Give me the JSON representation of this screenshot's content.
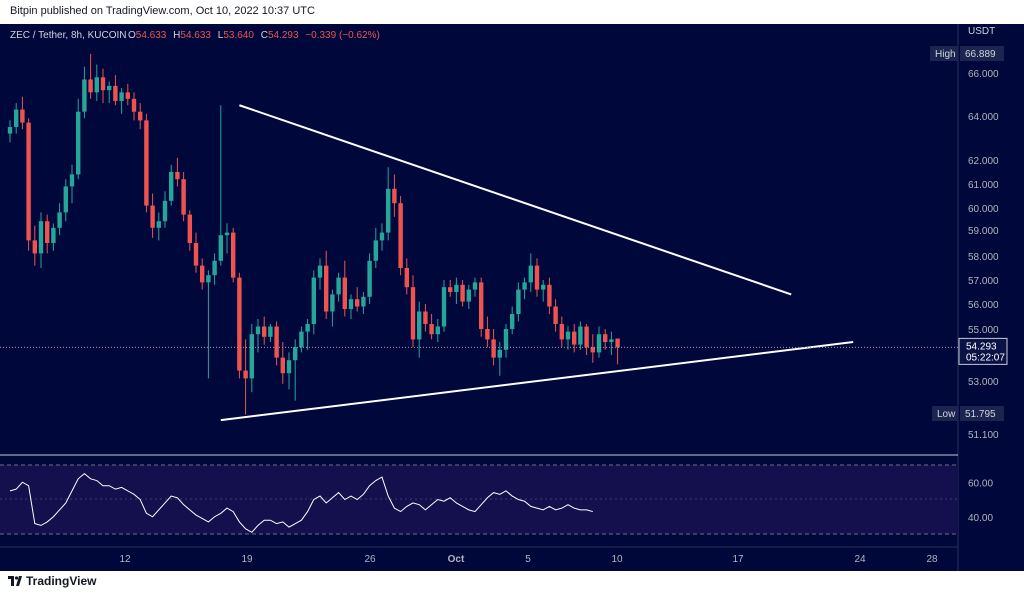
{
  "publisher_line": "Bitpin published on TradingView.com, Oct 10, 2022 10:37 UTC",
  "symbol_line": {
    "symbol": "ZEC / Tether, 8h, KUCOIN",
    "o_label": "O",
    "o_value": "54.633",
    "h_label": "H",
    "h_value": "54.633",
    "l_label": "L",
    "l_value": "53.640",
    "c_label": "C",
    "c_value": "54.293",
    "change": "−0.339 (−0.62%)"
  },
  "price_axis": {
    "currency": "USDT",
    "ticks": [
      "66.000",
      "64.000",
      "62.000",
      "61.000",
      "60.000",
      "59.000",
      "58.000",
      "57.000",
      "56.000",
      "55.000",
      "53.000",
      "52.000",
      "51.100"
    ],
    "high_label": "High",
    "high_value": "66.889",
    "low_label": "Low",
    "low_value": "51.795",
    "current_price": "54.293",
    "countdown": "05:22:07"
  },
  "rsi_axis": {
    "ticks": [
      "60.00",
      "40.00"
    ],
    "upper_band": 70,
    "lower_band": 30
  },
  "time_axis": {
    "ticks": [
      "12",
      "19",
      "26",
      "Oct",
      "5",
      "10",
      "17",
      "24",
      "28"
    ]
  },
  "footer": {
    "brand": "TradingView",
    "logo_icon": "tradingview-logo-icon"
  },
  "colors": {
    "background": "#00073a",
    "up": "#26a69a",
    "down": "#ef5350",
    "trendline": "#ffffff",
    "rsi_line": "#ffffff"
  },
  "chart_data": {
    "type": "candlestick",
    "symbol": "ZEC / Tether",
    "interval": "8h",
    "exchange": "KUCOIN",
    "ylim": [
      51.1,
      66.9
    ],
    "candles": [
      {
        "o": 63.2,
        "h": 63.8,
        "l": 62.8,
        "c": 63.5
      },
      {
        "o": 63.5,
        "h": 64.6,
        "l": 63.2,
        "c": 64.3
      },
      {
        "o": 64.3,
        "h": 64.9,
        "l": 63.4,
        "c": 63.7
      },
      {
        "o": 63.7,
        "h": 63.9,
        "l": 58.2,
        "c": 58.6
      },
      {
        "o": 58.6,
        "h": 59.2,
        "l": 57.6,
        "c": 58.1
      },
      {
        "o": 58.1,
        "h": 59.8,
        "l": 57.5,
        "c": 59.4
      },
      {
        "o": 59.4,
        "h": 59.7,
        "l": 58.1,
        "c": 58.5
      },
      {
        "o": 58.5,
        "h": 59.3,
        "l": 58.2,
        "c": 59.1
      },
      {
        "o": 59.1,
        "h": 60.2,
        "l": 58.8,
        "c": 59.8
      },
      {
        "o": 59.8,
        "h": 61.2,
        "l": 59.4,
        "c": 60.9
      },
      {
        "o": 60.9,
        "h": 61.8,
        "l": 60.2,
        "c": 61.4
      },
      {
        "o": 61.4,
        "h": 64.8,
        "l": 61.2,
        "c": 64.2
      },
      {
        "o": 64.2,
        "h": 66.3,
        "l": 63.9,
        "c": 65.7
      },
      {
        "o": 65.7,
        "h": 66.9,
        "l": 64.8,
        "c": 65.1
      },
      {
        "o": 65.1,
        "h": 66.4,
        "l": 64.7,
        "c": 65.8
      },
      {
        "o": 65.8,
        "h": 66.2,
        "l": 64.6,
        "c": 65.2
      },
      {
        "o": 65.2,
        "h": 65.6,
        "l": 64.6,
        "c": 65.4
      },
      {
        "o": 65.4,
        "h": 65.9,
        "l": 64.5,
        "c": 64.7
      },
      {
        "o": 64.7,
        "h": 65.3,
        "l": 64.1,
        "c": 65.1
      },
      {
        "o": 65.1,
        "h": 65.5,
        "l": 64.5,
        "c": 64.8
      },
      {
        "o": 64.8,
        "h": 65.1,
        "l": 63.8,
        "c": 64.2
      },
      {
        "o": 64.2,
        "h": 64.6,
        "l": 63.4,
        "c": 63.8
      },
      {
        "o": 63.8,
        "h": 64.1,
        "l": 59.8,
        "c": 60.1
      },
      {
        "o": 60.1,
        "h": 60.6,
        "l": 58.7,
        "c": 59.1
      },
      {
        "o": 59.1,
        "h": 59.8,
        "l": 58.6,
        "c": 59.4
      },
      {
        "o": 59.4,
        "h": 60.7,
        "l": 59.1,
        "c": 60.3
      },
      {
        "o": 60.3,
        "h": 61.8,
        "l": 60.1,
        "c": 61.5
      },
      {
        "o": 61.5,
        "h": 62.1,
        "l": 60.9,
        "c": 61.2
      },
      {
        "o": 61.2,
        "h": 61.5,
        "l": 59.4,
        "c": 59.7
      },
      {
        "o": 59.7,
        "h": 59.9,
        "l": 58.2,
        "c": 58.5
      },
      {
        "o": 58.5,
        "h": 58.9,
        "l": 57.3,
        "c": 57.6
      },
      {
        "o": 57.6,
        "h": 57.9,
        "l": 56.6,
        "c": 56.9
      },
      {
        "o": 56.9,
        "h": 57.4,
        "l": 53.1,
        "c": 57.2
      },
      {
        "o": 57.2,
        "h": 58.1,
        "l": 56.8,
        "c": 57.8
      },
      {
        "o": 57.8,
        "h": 64.5,
        "l": 57.6,
        "c": 58.8
      },
      {
        "o": 58.8,
        "h": 59.3,
        "l": 58.1,
        "c": 58.9
      },
      {
        "o": 58.9,
        "h": 59.1,
        "l": 56.9,
        "c": 57.1
      },
      {
        "o": 57.1,
        "h": 57.3,
        "l": 53.1,
        "c": 53.4
      },
      {
        "o": 53.4,
        "h": 54.6,
        "l": 51.8,
        "c": 53.1
      },
      {
        "o": 53.1,
        "h": 55.2,
        "l": 52.6,
        "c": 54.8
      },
      {
        "o": 54.8,
        "h": 55.4,
        "l": 54.1,
        "c": 55.1
      },
      {
        "o": 55.1,
        "h": 55.5,
        "l": 54.4,
        "c": 54.7
      },
      {
        "o": 54.7,
        "h": 55.2,
        "l": 54.5,
        "c": 55.1
      },
      {
        "o": 55.1,
        "h": 55.3,
        "l": 53.6,
        "c": 53.9
      },
      {
        "o": 53.9,
        "h": 54.5,
        "l": 52.9,
        "c": 53.3
      },
      {
        "o": 53.3,
        "h": 54.1,
        "l": 52.7,
        "c": 53.8
      },
      {
        "o": 53.8,
        "h": 54.6,
        "l": 52.3,
        "c": 54.3
      },
      {
        "o": 54.3,
        "h": 55.1,
        "l": 54.1,
        "c": 54.9
      },
      {
        "o": 54.9,
        "h": 55.4,
        "l": 54.2,
        "c": 55.2
      },
      {
        "o": 55.2,
        "h": 57.4,
        "l": 54.8,
        "c": 57.1
      },
      {
        "o": 57.1,
        "h": 57.9,
        "l": 56.6,
        "c": 57.6
      },
      {
        "o": 57.6,
        "h": 58.2,
        "l": 55.4,
        "c": 55.7
      },
      {
        "o": 55.7,
        "h": 56.6,
        "l": 55.1,
        "c": 56.4
      },
      {
        "o": 56.4,
        "h": 57.3,
        "l": 56.1,
        "c": 57.1
      },
      {
        "o": 57.1,
        "h": 57.8,
        "l": 55.5,
        "c": 55.8
      },
      {
        "o": 55.8,
        "h": 56.4,
        "l": 55.4,
        "c": 56.2
      },
      {
        "o": 56.2,
        "h": 56.7,
        "l": 55.7,
        "c": 55.9
      },
      {
        "o": 55.9,
        "h": 56.5,
        "l": 55.6,
        "c": 56.3
      },
      {
        "o": 56.3,
        "h": 58.1,
        "l": 56.0,
        "c": 57.8
      },
      {
        "o": 57.8,
        "h": 59.1,
        "l": 57.5,
        "c": 58.6
      },
      {
        "o": 58.6,
        "h": 59.3,
        "l": 58.2,
        "c": 58.9
      },
      {
        "o": 58.9,
        "h": 61.7,
        "l": 58.6,
        "c": 60.8
      },
      {
        "o": 60.8,
        "h": 61.4,
        "l": 59.6,
        "c": 60.2
      },
      {
        "o": 60.2,
        "h": 60.5,
        "l": 57.2,
        "c": 57.5
      },
      {
        "o": 57.5,
        "h": 57.9,
        "l": 56.4,
        "c": 56.7
      },
      {
        "o": 56.7,
        "h": 57.2,
        "l": 54.3,
        "c": 54.6
      },
      {
        "o": 54.6,
        "h": 56.1,
        "l": 53.9,
        "c": 55.7
      },
      {
        "o": 55.7,
        "h": 56.0,
        "l": 54.9,
        "c": 55.2
      },
      {
        "o": 55.2,
        "h": 55.6,
        "l": 54.6,
        "c": 54.8
      },
      {
        "o": 54.8,
        "h": 55.4,
        "l": 54.5,
        "c": 55.1
      },
      {
        "o": 55.1,
        "h": 57.0,
        "l": 54.9,
        "c": 56.7
      },
      {
        "o": 56.7,
        "h": 57.0,
        "l": 56.3,
        "c": 56.5
      },
      {
        "o": 56.5,
        "h": 57.1,
        "l": 56.0,
        "c": 56.8
      },
      {
        "o": 56.8,
        "h": 57.0,
        "l": 55.9,
        "c": 56.1
      },
      {
        "o": 56.1,
        "h": 56.8,
        "l": 55.8,
        "c": 56.6
      },
      {
        "o": 56.6,
        "h": 57.1,
        "l": 56.3,
        "c": 56.9
      },
      {
        "o": 56.9,
        "h": 57.1,
        "l": 54.7,
        "c": 55.0
      },
      {
        "o": 55.0,
        "h": 55.5,
        "l": 54.3,
        "c": 54.6
      },
      {
        "o": 54.6,
        "h": 55.0,
        "l": 53.6,
        "c": 53.9
      },
      {
        "o": 53.9,
        "h": 54.5,
        "l": 53.2,
        "c": 54.2
      },
      {
        "o": 54.2,
        "h": 55.2,
        "l": 53.9,
        "c": 55.0
      },
      {
        "o": 55.0,
        "h": 55.9,
        "l": 54.8,
        "c": 55.6
      },
      {
        "o": 55.6,
        "h": 56.9,
        "l": 55.3,
        "c": 56.6
      },
      {
        "o": 56.6,
        "h": 57.1,
        "l": 56.2,
        "c": 56.9
      },
      {
        "o": 56.9,
        "h": 58.1,
        "l": 56.5,
        "c": 57.6
      },
      {
        "o": 57.6,
        "h": 57.9,
        "l": 56.3,
        "c": 56.6
      },
      {
        "o": 56.6,
        "h": 57.0,
        "l": 56.1,
        "c": 56.8
      },
      {
        "o": 56.8,
        "h": 57.1,
        "l": 55.6,
        "c": 55.9
      },
      {
        "o": 55.9,
        "h": 56.2,
        "l": 54.9,
        "c": 55.2
      },
      {
        "o": 55.2,
        "h": 55.5,
        "l": 54.3,
        "c": 54.6
      },
      {
        "o": 54.6,
        "h": 55.1,
        "l": 54.2,
        "c": 54.9
      },
      {
        "o": 54.9,
        "h": 55.2,
        "l": 54.1,
        "c": 54.4
      },
      {
        "o": 54.4,
        "h": 55.3,
        "l": 54.2,
        "c": 55.1
      },
      {
        "o": 55.1,
        "h": 55.2,
        "l": 54.0,
        "c": 54.3
      },
      {
        "o": 54.3,
        "h": 54.8,
        "l": 53.7,
        "c": 54.1
      },
      {
        "o": 54.1,
        "h": 55.1,
        "l": 53.9,
        "c": 54.8
      },
      {
        "o": 54.8,
        "h": 55.0,
        "l": 54.2,
        "c": 54.5
      },
      {
        "o": 54.5,
        "h": 54.9,
        "l": 54.0,
        "c": 54.6
      },
      {
        "o": 54.633,
        "h": 54.633,
        "l": 53.64,
        "c": 54.293
      }
    ],
    "trendlines": [
      {
        "name": "descending-resistance",
        "from": [
          37,
          64.5
        ],
        "to": [
          126,
          56.4
        ]
      },
      {
        "name": "ascending-support",
        "from": [
          34,
          51.6
        ],
        "to": [
          136,
          54.5
        ]
      }
    ],
    "rsi": {
      "ylim": [
        25,
        80
      ],
      "bands": [
        30,
        70
      ],
      "values": [
        55,
        56,
        60,
        58,
        36,
        35,
        37,
        40,
        44,
        48,
        55,
        62,
        65,
        62,
        61,
        58,
        58,
        56,
        57,
        55,
        53,
        50,
        42,
        40,
        44,
        48,
        52,
        51,
        47,
        44,
        41,
        39,
        37,
        40,
        42,
        45,
        43,
        37,
        33,
        31,
        35,
        38,
        38,
        36,
        37,
        34,
        36,
        38,
        43,
        50,
        52,
        48,
        51,
        54,
        50,
        52,
        50,
        53,
        58,
        61,
        63,
        52,
        45,
        43,
        46,
        48,
        47,
        44,
        47,
        50,
        49,
        51,
        48,
        46,
        44,
        43,
        47,
        51,
        54,
        53,
        55,
        52,
        50,
        49,
        46,
        45,
        44,
        46,
        44,
        45,
        47,
        45,
        44,
        44,
        43
      ]
    }
  }
}
